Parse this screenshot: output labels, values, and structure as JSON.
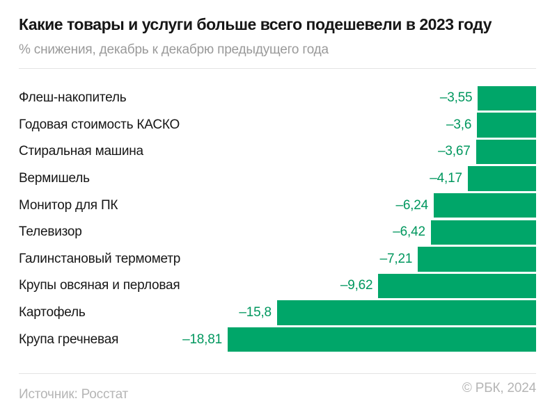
{
  "chart_data": {
    "type": "bar",
    "orientation": "horizontal",
    "anchor": "right",
    "title": "Какие товары и услуги больше всего подешевели в 2023 году",
    "subtitle": "% снижения, декабрь к декабрю предыдущего года",
    "xlabel": "",
    "ylabel": "",
    "xlim": [
      -18.81,
      0
    ],
    "grid": false,
    "legend": "none",
    "bar_color": "#00a669",
    "value_label_color": "#00975e",
    "categories": [
      "Флеш-накопитель",
      "Годовая стоимость КАСКО",
      "Стиральная машина",
      "Вермишель",
      "Монитор для ПК",
      "Телевизор",
      "Галинстановый термометр",
      "Крупы овсяная и перловая",
      "Картофель",
      "Крупа гречневая"
    ],
    "values": [
      -3.55,
      -3.6,
      -3.67,
      -4.17,
      -6.24,
      -6.42,
      -7.21,
      -9.62,
      -15.8,
      -18.81
    ],
    "value_labels": [
      "–3,55",
      "–3,6",
      "–3,67",
      "–4,17",
      "–6,24",
      "–6,42",
      "–7,21",
      "–9,62",
      "–15,8",
      "–18,81"
    ]
  },
  "footer": {
    "source": "Источник: Росстат",
    "copyright": "© РБК, 2024"
  }
}
